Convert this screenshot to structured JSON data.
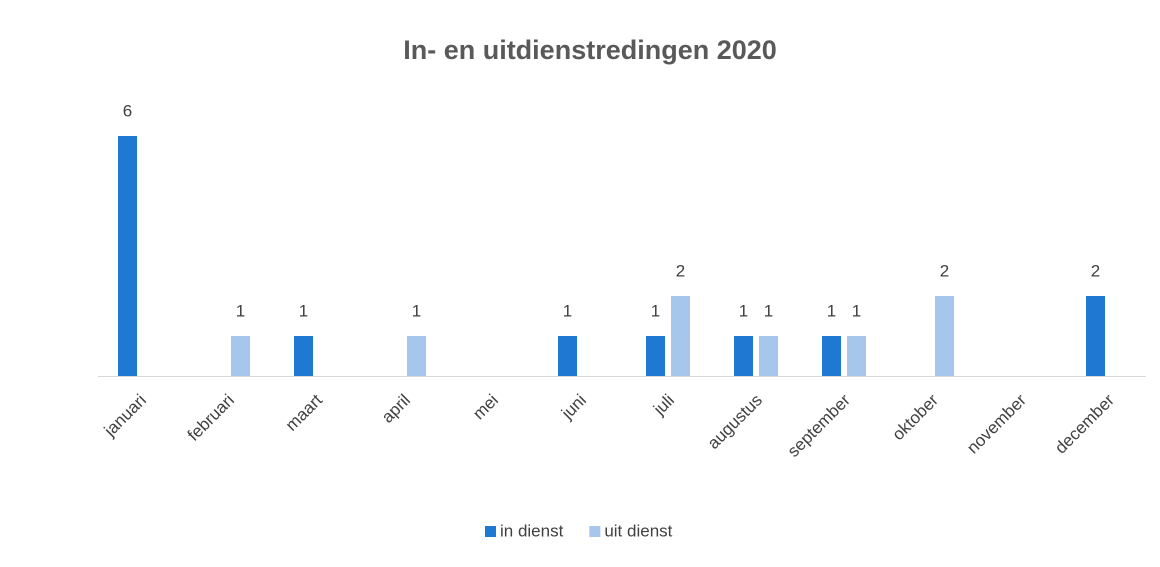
{
  "chart_data": {
    "type": "bar",
    "title": "In- en uitdienstredingen 2020",
    "categories": [
      "januari",
      "februari",
      "maart",
      "april",
      "mei",
      "juni",
      "juli",
      "augustus",
      "september",
      "oktober",
      "november",
      "december"
    ],
    "series": [
      {
        "name": "in dienst",
        "color": "#1f78d1",
        "values": [
          6,
          null,
          1,
          null,
          null,
          1,
          1,
          1,
          1,
          null,
          null,
          2
        ]
      },
      {
        "name": "uit dienst",
        "color": "#a6c6ec",
        "values": [
          null,
          1,
          null,
          1,
          null,
          null,
          2,
          1,
          1,
          2,
          null,
          null
        ]
      }
    ],
    "legend": "bottom"
  }
}
